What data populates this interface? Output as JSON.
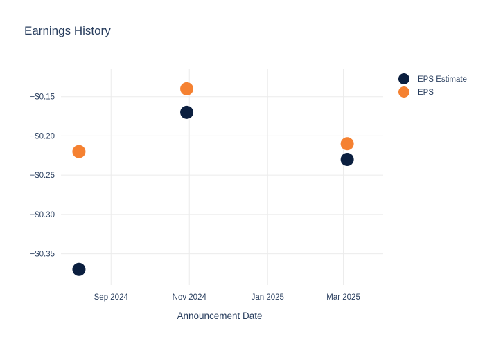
{
  "chart_data": {
    "type": "scatter",
    "title": "Earnings History",
    "xlabel": "Announcement Date",
    "ylabel": "",
    "x_ticks": [
      {
        "date": "2024-09-01",
        "label": "Sep 2024"
      },
      {
        "date": "2024-11-01",
        "label": "Nov 2024"
      },
      {
        "date": "2025-01-01",
        "label": "Jan 2025"
      },
      {
        "date": "2025-03-01",
        "label": "Mar 2025"
      }
    ],
    "y_ticks": [
      {
        "value": -0.15,
        "label": "−$0.15"
      },
      {
        "value": -0.2,
        "label": "−$0.20"
      },
      {
        "value": -0.25,
        "label": "−$0.25"
      },
      {
        "value": -0.3,
        "label": "−$0.30"
      },
      {
        "value": -0.35,
        "label": "−$0.35"
      }
    ],
    "xlim": [
      "2024-07-24",
      "2025-04-01"
    ],
    "ylim": [
      -0.39,
      -0.115
    ],
    "grid": true,
    "legend_position": "top-right",
    "series": [
      {
        "name": "EPS Estimate",
        "color": "#0b1f3f",
        "points": [
          {
            "x": "2024-08-07",
            "y": -0.37
          },
          {
            "x": "2024-10-30",
            "y": -0.17
          },
          {
            "x": "2025-03-04",
            "y": -0.23
          }
        ]
      },
      {
        "name": "EPS",
        "color": "#f58131",
        "points": [
          {
            "x": "2024-08-07",
            "y": -0.22
          },
          {
            "x": "2024-10-30",
            "y": -0.14
          },
          {
            "x": "2025-03-04",
            "y": -0.21
          }
        ]
      }
    ]
  }
}
